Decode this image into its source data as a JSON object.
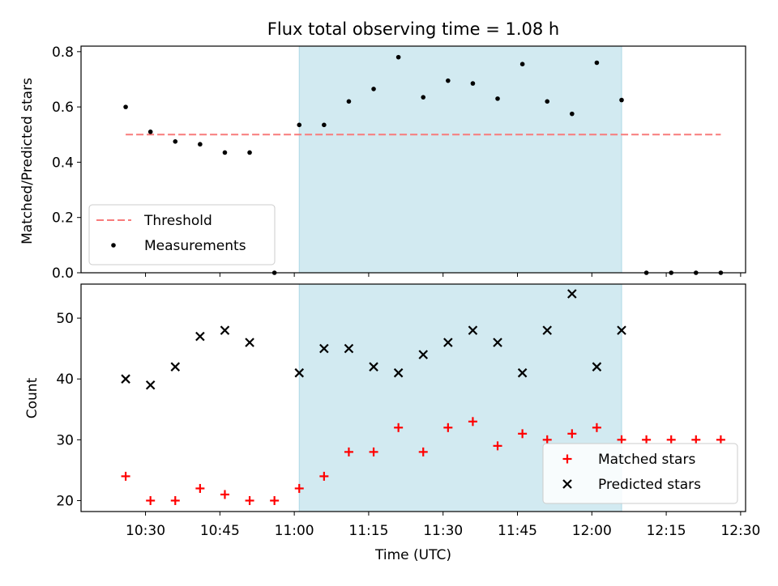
{
  "title": "Flux total observing time = 1.08 h",
  "chart_data": [
    {
      "type": "scatter",
      "panel": "top",
      "ylabel": "Matched/Predicted stars",
      "ylim": [
        0,
        0.82
      ],
      "yticks": [
        0.0,
        0.2,
        0.4,
        0.6,
        0.8
      ],
      "ytick_labels": [
        "0.0",
        "0.2",
        "0.4",
        "0.6",
        "0.8"
      ],
      "xlim": [
        "10:17",
        "12:31"
      ],
      "highlight_span": [
        "11:01",
        "12:06"
      ],
      "highlight_color": "#add8e6",
      "threshold": {
        "name": "Threshold",
        "value": 0.5,
        "x_range": [
          "10:26",
          "12:26"
        ],
        "color": "#f87b7b",
        "style": "dashed"
      },
      "series": [
        {
          "name": "Measurements",
          "color": "#000000",
          "marker": "dot",
          "x": [
            "10:26",
            "10:31",
            "10:36",
            "10:41",
            "10:46",
            "10:51",
            "10:56",
            "11:01",
            "11:06",
            "11:11",
            "11:16",
            "11:21",
            "11:26",
            "11:31",
            "11:36",
            "11:41",
            "11:46",
            "11:51",
            "11:56",
            "12:01",
            "12:06",
            "12:11",
            "12:16",
            "12:21",
            "12:26"
          ],
          "y": [
            0.6,
            0.51,
            0.475,
            0.465,
            0.435,
            0.435,
            0.0,
            0.535,
            0.535,
            0.62,
            0.665,
            0.78,
            0.635,
            0.695,
            0.685,
            0.63,
            0.755,
            0.62,
            0.575,
            0.76,
            0.625,
            0.0,
            0.0,
            0.0,
            0.0
          ]
        }
      ],
      "legend": {
        "position": "lower-left",
        "entries": [
          "Threshold",
          "Measurements"
        ]
      }
    },
    {
      "type": "scatter",
      "panel": "bottom",
      "xlabel": "Time (UTC)",
      "ylabel": "Count",
      "ylim": [
        18.2,
        55.6
      ],
      "yticks": [
        20,
        30,
        40,
        50
      ],
      "ytick_labels": [
        "20",
        "30",
        "40",
        "50"
      ],
      "xlim": [
        "10:17",
        "12:31"
      ],
      "xticks": [
        "10:30",
        "10:45",
        "11:00",
        "11:15",
        "11:30",
        "11:45",
        "12:00",
        "12:15",
        "12:30"
      ],
      "highlight_span": [
        "11:01",
        "12:06"
      ],
      "highlight_color": "#add8e6",
      "series": [
        {
          "name": "Matched stars",
          "color": "#ff0000",
          "marker": "plus",
          "x": [
            "10:26",
            "10:31",
            "10:36",
            "10:41",
            "10:46",
            "10:51",
            "10:56",
            "11:01",
            "11:06",
            "11:11",
            "11:16",
            "11:21",
            "11:26",
            "11:31",
            "11:36",
            "11:41",
            "11:46",
            "11:51",
            "11:56",
            "12:01",
            "12:06",
            "12:11",
            "12:16",
            "12:21",
            "12:26"
          ],
          "y": [
            24,
            20,
            20,
            22,
            21,
            20,
            20,
            22,
            24,
            28,
            28,
            32,
            28,
            32,
            33,
            29,
            31,
            30,
            31,
            32,
            30,
            30,
            30,
            30,
            30
          ]
        },
        {
          "name": "Predicted stars",
          "color": "#000000",
          "marker": "x",
          "x": [
            "10:26",
            "10:31",
            "10:36",
            "10:41",
            "10:46",
            "10:51",
            "11:01",
            "11:06",
            "11:11",
            "11:16",
            "11:21",
            "11:26",
            "11:31",
            "11:36",
            "11:41",
            "11:46",
            "11:51",
            "11:56",
            "12:01",
            "12:06"
          ],
          "y": [
            40,
            39,
            42,
            47,
            48,
            46,
            41,
            45,
            45,
            42,
            41,
            44,
            46,
            48,
            46,
            41,
            48,
            54,
            42,
            48
          ]
        }
      ],
      "legend": {
        "position": "lower-right",
        "entries": [
          "Matched stars",
          "Predicted stars"
        ]
      }
    }
  ]
}
